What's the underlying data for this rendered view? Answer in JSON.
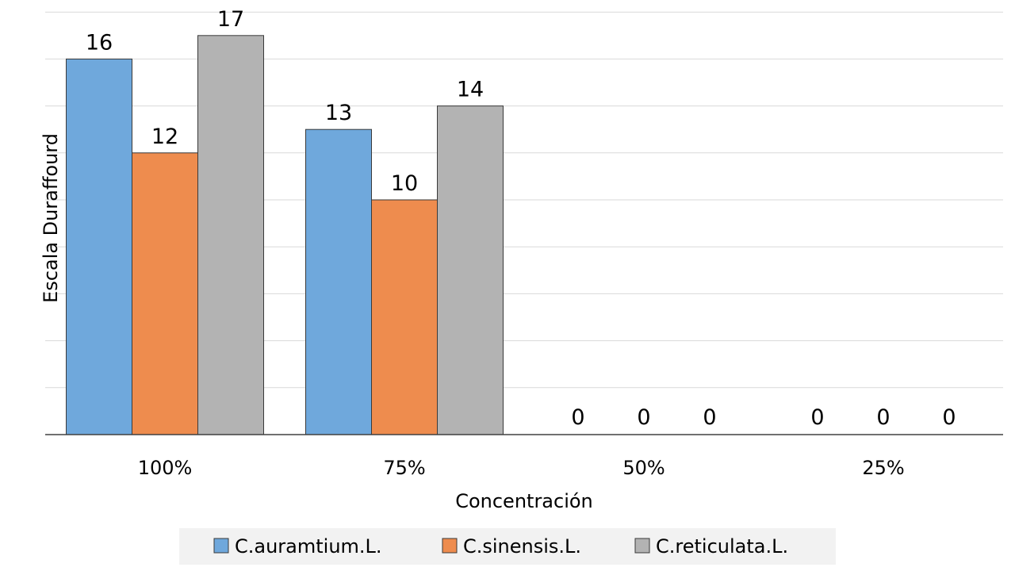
{
  "chart_data": {
    "type": "bar",
    "categories": [
      "100%",
      "75%",
      "50%",
      "25%"
    ],
    "series": [
      {
        "name": "C.auramtium.L.",
        "color": "#6fa8dc",
        "values": [
          16,
          13,
          0,
          0
        ]
      },
      {
        "name": "C.sinensis.L.",
        "color": "#ee8c4e",
        "values": [
          12,
          10,
          0,
          0
        ]
      },
      {
        "name": "C.reticulata.L.",
        "color": "#b3b3b3",
        "values": [
          17,
          14,
          0,
          0
        ]
      }
    ],
    "xlabel": "Concentración",
    "ylabel": "Escala Duraffourd",
    "ylim": [
      0,
      18
    ],
    "grid": true,
    "legend_position": "bottom",
    "data_labels": true
  }
}
